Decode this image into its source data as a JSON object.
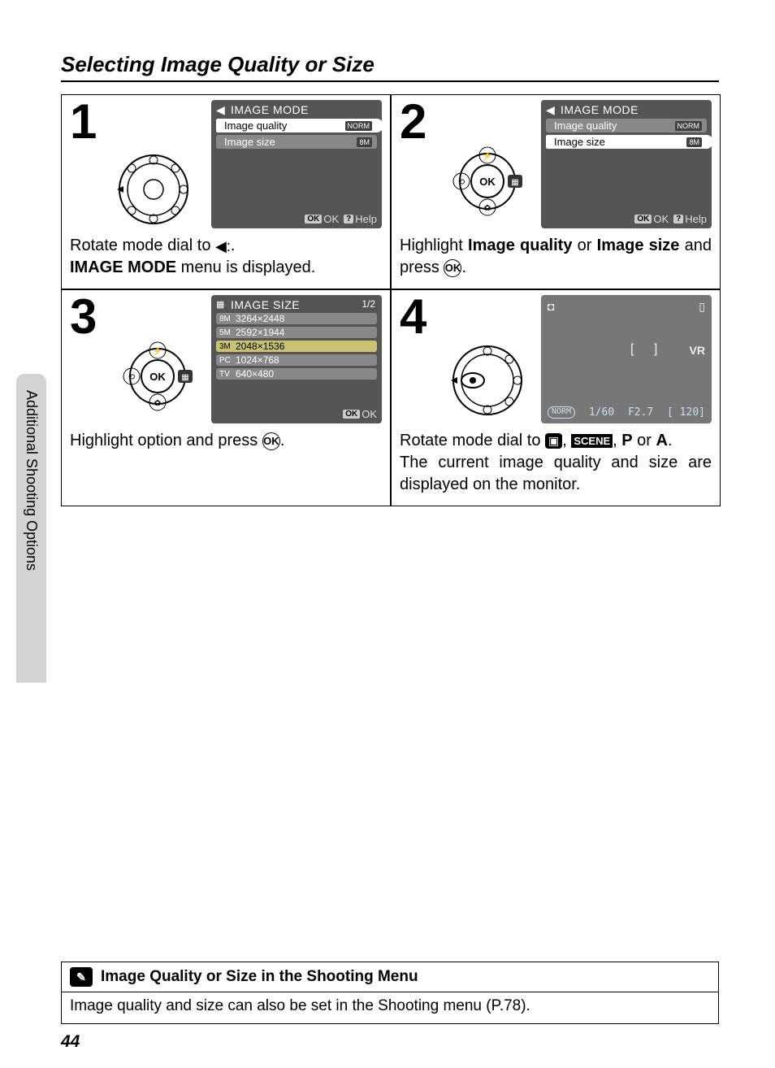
{
  "title": "Selecting Image Quality or Size",
  "side_tab": "Additional Shooting Options",
  "page_number": "44",
  "lcd_common": {
    "title": "IMAGE MODE",
    "row_quality": "Image quality",
    "row_size": "Image size",
    "quality_badge": "NORM",
    "size_badge": "8M",
    "ok_label": "OK",
    "help_label": "Help",
    "ok_box": "OK",
    "help_box": "?"
  },
  "step1": {
    "num": "1",
    "desc_pre": "Rotate mode dial to ",
    "desc_post": ".",
    "desc_line2_pre": "",
    "desc_line2_bold": "IMAGE MODE",
    "desc_line2_post": " menu is displayed."
  },
  "step2": {
    "num": "2",
    "desc_pre": "Highlight ",
    "bold1": "Image quality",
    "mid": " or ",
    "bold2": "Image size",
    "post": " and press ",
    "post2": "."
  },
  "step3": {
    "num": "3",
    "lcd_title": "IMAGE SIZE",
    "page": "1/2",
    "sizes": [
      {
        "icon": "8M",
        "label": "3264×2448"
      },
      {
        "icon": "5M",
        "label": "2592×1944"
      },
      {
        "icon": "3M",
        "label": "2048×1536"
      },
      {
        "icon": "PC",
        "label": "1024×768"
      },
      {
        "icon": "TV",
        "label": "640×480"
      }
    ],
    "desc_pre": "Highlight option and press ",
    "desc_post": "."
  },
  "step4": {
    "num": "4",
    "lcd": {
      "vr": "VR",
      "shutter": "1/60",
      "aperture": "F2.7",
      "remaining": "[ 120]",
      "norm": "NORM"
    },
    "desc_pre": "Rotate mode dial to ",
    "mid1": ", ",
    "scene": "SCENE",
    "mid2": ", ",
    "p": "P",
    "mid3": " or ",
    "a": "A",
    "post1": ".",
    "line2": "The current image quality and size are displayed on the monitor."
  },
  "note": {
    "header": "Image Quality or Size in the Shooting Menu",
    "body": "Image quality and size can also be set in the Shooting menu (P.78)."
  },
  "colors": {
    "lcd_bg": "#555555",
    "lcd_row": "#888888",
    "highlight": "#c9c070"
  }
}
